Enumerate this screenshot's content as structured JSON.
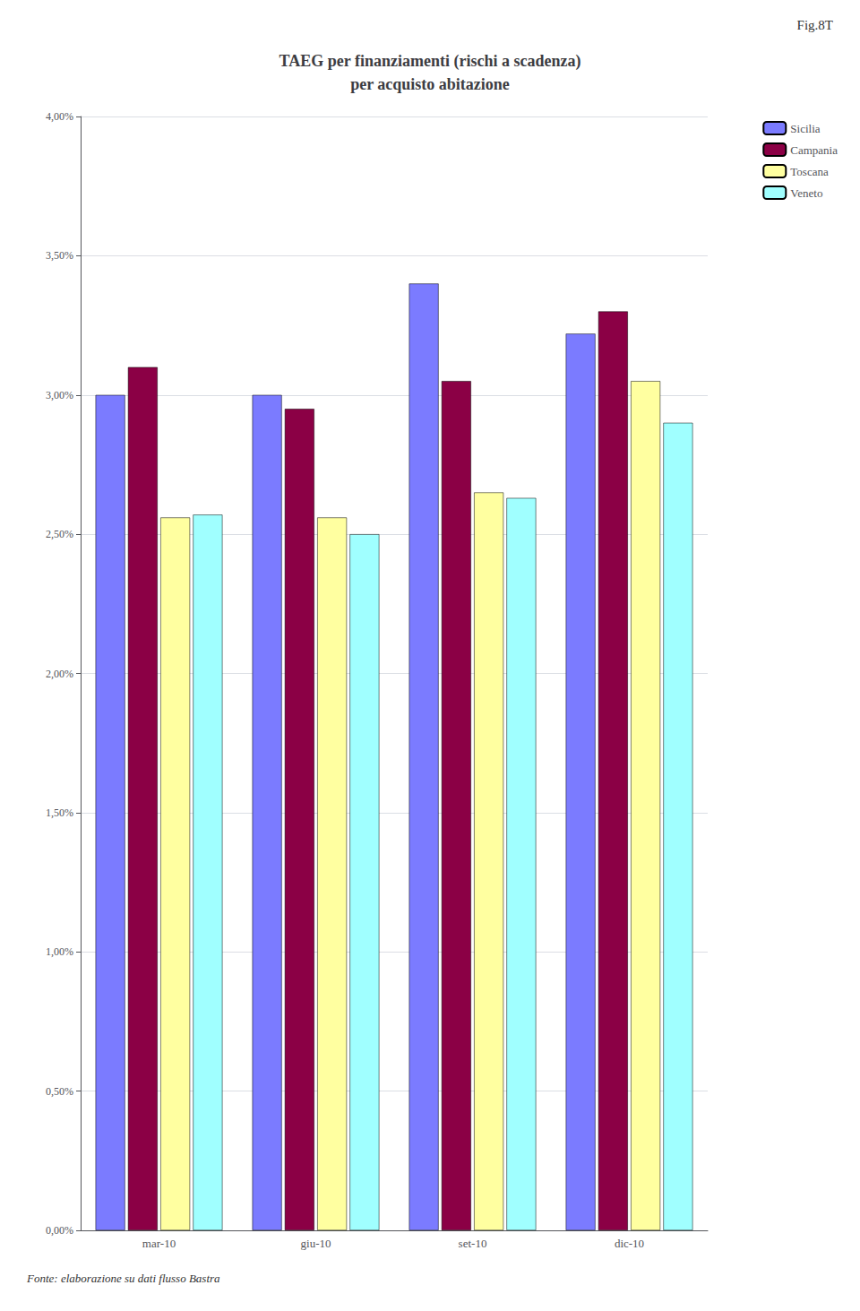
{
  "chart_data": {
    "type": "bar",
    "title": "TAEG per finanziamenti (rischi a scadenza)\nper acquisto abitazione",
    "annotations": [
      "Fig.8T",
      "Fonte: elaborazione su dati flusso Bastra"
    ],
    "categories": [
      "mar-10",
      "giu-10",
      "set-10",
      "dic-10"
    ],
    "series": [
      {
        "name": "Sicilia",
        "color": "#7B7BFF",
        "values": [
          3.0,
          3.0,
          3.4,
          3.22
        ]
      },
      {
        "name": "Campania",
        "color": "#8B0045",
        "values": [
          3.1,
          2.95,
          3.05,
          3.3
        ]
      },
      {
        "name": "Toscana",
        "color": "#FFFFA0",
        "values": [
          2.56,
          2.56,
          2.65,
          3.05
        ]
      },
      {
        "name": "Veneto",
        "color": "#A0FFFF",
        "values": [
          2.57,
          2.5,
          2.63,
          2.9
        ]
      }
    ],
    "ylim": [
      0.0,
      4.0
    ],
    "yticks": [
      {
        "value": 0.0,
        "label": "0,00%"
      },
      {
        "value": 0.5,
        "label": "0,50%"
      },
      {
        "value": 1.0,
        "label": "1,00%"
      },
      {
        "value": 1.5,
        "label": "1,50%"
      },
      {
        "value": 2.0,
        "label": "2,00%"
      },
      {
        "value": 2.5,
        "label": "2,50%"
      },
      {
        "value": 3.0,
        "label": "3,00%"
      },
      {
        "value": 3.5,
        "label": "3,50%"
      },
      {
        "value": 4.0,
        "label": "4,00%"
      }
    ],
    "grid": true,
    "legend": "upper right"
  }
}
